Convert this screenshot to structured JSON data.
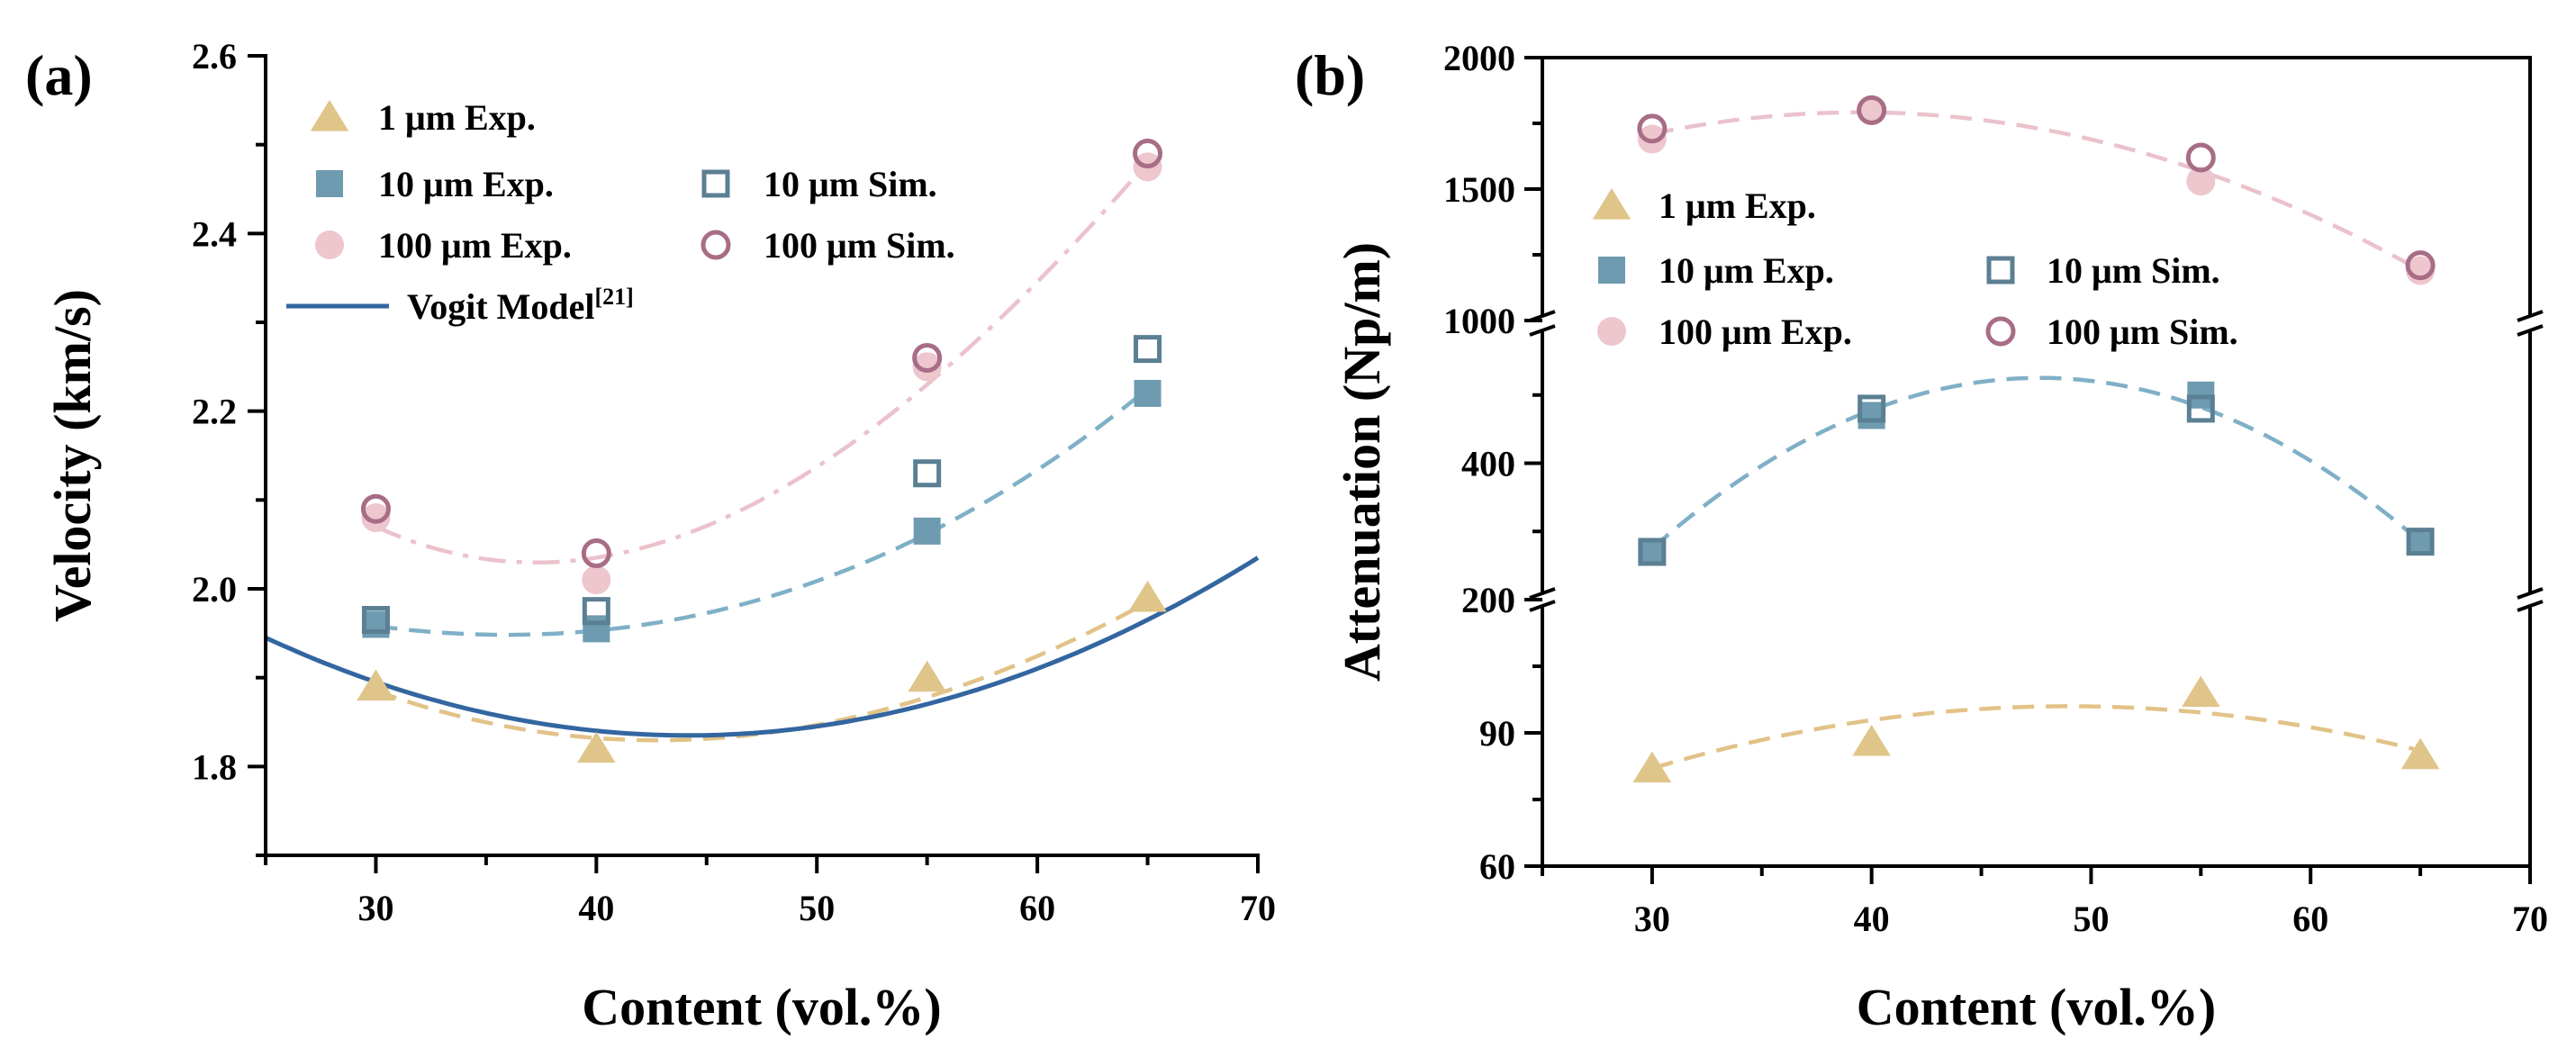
{
  "colors": {
    "exp_1um": "#e0c58a",
    "exp_10um": "#6e9bb0",
    "exp_100um": "#edc6ce",
    "sim_10um": "#5b7f93",
    "sim_100um": "#a86d86",
    "fit_1um": "#e2c287",
    "fit_10um": "#7fb0c7",
    "fit_100um": "#ebc2cc",
    "model": "#3366a0"
  },
  "chart_data": [
    {
      "panel": "(a)",
      "type": "scatter",
      "xlabel": "Content (vol.%)",
      "ylabel": "Velocity (km/s)",
      "xlim": [
        25,
        70
      ],
      "ylim": [
        1.7,
        2.6
      ],
      "xticks": [
        "30",
        "40",
        "50",
        "60",
        "70"
      ],
      "yticks": [
        "1.8",
        "2.0",
        "2.2",
        "2.4",
        "2.6"
      ],
      "grid": false,
      "legend": {
        "position": "top-left",
        "entries": [
          {
            "label": "1 μm Exp.",
            "series": "exp_1um"
          },
          {
            "label": "10 μm Exp.",
            "series": "exp_10um"
          },
          {
            "label": "10 μm Sim.",
            "series": "sim_10um"
          },
          {
            "label": "100 μm Exp.",
            "series": "exp_100um"
          },
          {
            "label": "100 μm Sim.",
            "series": "sim_100um"
          },
          {
            "label": "Vogit Model",
            "superscript": "[21]",
            "series": "model"
          }
        ]
      },
      "series": [
        {
          "name": "1 μm Exp.",
          "key": "exp_1um",
          "marker": "triangle",
          "x": [
            30,
            40,
            55,
            65
          ],
          "y": [
            1.89,
            1.82,
            1.9,
            1.99
          ]
        },
        {
          "name": "10 μm Exp.",
          "key": "exp_10um",
          "marker": "square",
          "x": [
            30,
            40,
            55,
            65
          ],
          "y": [
            1.96,
            1.955,
            2.065,
            2.22
          ]
        },
        {
          "name": "10 μm Sim.",
          "key": "sim_10um",
          "marker": "open-square",
          "x": [
            30,
            40,
            55,
            65
          ],
          "y": [
            1.965,
            1.975,
            2.13,
            2.27
          ]
        },
        {
          "name": "100 μm Exp.",
          "key": "exp_100um",
          "marker": "circle",
          "x": [
            30,
            40,
            55,
            65
          ],
          "y": [
            2.08,
            2.01,
            2.25,
            2.475
          ]
        },
        {
          "name": "100 μm Sim.",
          "key": "sim_100um",
          "marker": "open-circle",
          "x": [
            30,
            40,
            55,
            65
          ],
          "y": [
            2.09,
            2.04,
            2.26,
            2.49
          ]
        }
      ],
      "fits": [
        {
          "key": "fit_1um",
          "style": "dashed",
          "x_range": [
            30,
            65
          ],
          "x": [
            30,
            40,
            55,
            65
          ],
          "y": [
            1.885,
            1.832,
            1.878,
            1.985
          ]
        },
        {
          "key": "fit_10um",
          "style": "dashed",
          "x_range": [
            30,
            65
          ],
          "x": [
            30,
            40,
            55,
            65
          ],
          "y": [
            1.958,
            1.953,
            2.062,
            2.225
          ]
        },
        {
          "key": "fit_100um",
          "style": "dashdot",
          "x_range": [
            30,
            65
          ],
          "x": [
            30,
            40,
            55,
            65
          ],
          "y": [
            2.07,
            2.035,
            2.23,
            2.48
          ]
        },
        {
          "key": "model",
          "style": "solid",
          "x_range": [
            25,
            70
          ],
          "x": [
            25,
            44,
            70
          ],
          "y": [
            1.945,
            1.835,
            2.035
          ]
        }
      ]
    },
    {
      "panel": "(b)",
      "type": "scatter",
      "xlabel": "Content (vol.%)",
      "ylabel": "Attenuation (Np/m)",
      "xlim": [
        25,
        70
      ],
      "axis_breaks": true,
      "segments": [
        {
          "name": "lower",
          "range": [
            60,
            120
          ],
          "ticks": [
            "60",
            "90"
          ]
        },
        {
          "name": "middle",
          "range": [
            200,
            600
          ],
          "ticks": [
            "200",
            "400"
          ]
        },
        {
          "name": "upper",
          "range": [
            1000,
            2000
          ],
          "ticks": [
            "1000",
            "1500",
            "2000"
          ]
        }
      ],
      "xticks": [
        "30",
        "40",
        "50",
        "60",
        "70"
      ],
      "grid": false,
      "legend": {
        "position": "middle-left",
        "entries": [
          {
            "label": "1 μm Exp.",
            "series": "exp_1um"
          },
          {
            "label": "10 μm Exp.",
            "series": "exp_10um"
          },
          {
            "label": "10 μm Sim.",
            "series": "sim_10um"
          },
          {
            "label": "100 μm Exp.",
            "series": "exp_100um"
          },
          {
            "label": "100 μm Sim.",
            "series": "sim_100um"
          }
        ]
      },
      "series": [
        {
          "name": "1 μm Exp.",
          "key": "exp_1um",
          "marker": "triangle",
          "x": [
            30,
            40,
            55,
            65
          ],
          "y": [
            82,
            88,
            99,
            85
          ]
        },
        {
          "name": "10 μm Exp.",
          "key": "exp_10um",
          "marker": "square",
          "x": [
            30,
            40,
            55,
            65
          ],
          "y": [
            270,
            470,
            500,
            285
          ]
        },
        {
          "name": "10 μm Sim.",
          "key": "sim_10um",
          "marker": "open-square",
          "x": [
            30,
            40,
            55,
            65
          ],
          "y": [
            270,
            480,
            480,
            285
          ]
        },
        {
          "name": "100 μm Exp.",
          "key": "exp_100um",
          "marker": "circle",
          "x": [
            30,
            40,
            55,
            65
          ],
          "y": [
            1690,
            1800,
            1530,
            1190
          ]
        },
        {
          "name": "100 μm Sim.",
          "key": "sim_100um",
          "marker": "open-circle",
          "x": [
            30,
            40,
            55,
            65
          ],
          "y": [
            1730,
            1800,
            1620,
            1210
          ]
        }
      ],
      "fits": [
        {
          "key": "fit_1um",
          "style": "dashed",
          "x_range": [
            30,
            65
          ],
          "x": [
            30,
            49,
            65
          ],
          "y": [
            82,
            96,
            86
          ]
        },
        {
          "key": "fit_10um",
          "style": "dashed",
          "x_range": [
            30,
            65
          ],
          "x": [
            30,
            48,
            65
          ],
          "y": [
            275,
            525,
            285
          ]
        },
        {
          "key": "fit_100um",
          "style": "dashed",
          "x_range": [
            30,
            65
          ],
          "x": [
            30,
            43,
            65
          ],
          "y": [
            1710,
            1780,
            1190
          ]
        }
      ]
    }
  ]
}
